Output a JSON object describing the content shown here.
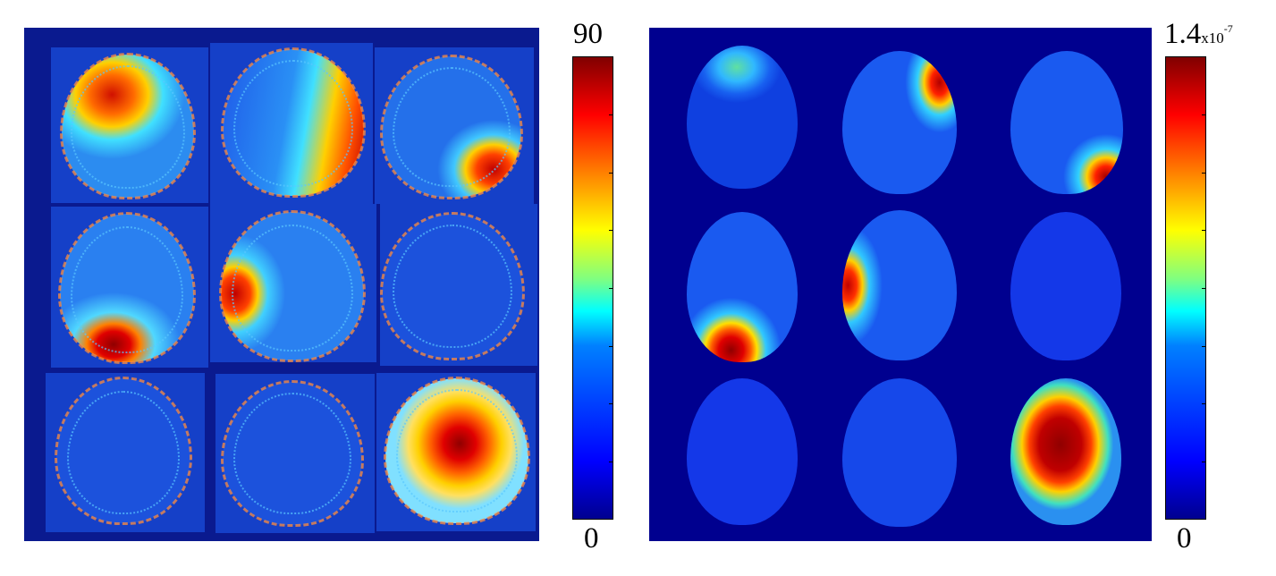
{
  "left_colorbar": {
    "max_label": "90",
    "min_label": "0",
    "min_value": 0,
    "max_value": 90
  },
  "right_colorbar": {
    "max_label": "1.4",
    "max_suffix": "x10",
    "max_exp": "-7",
    "min_label": "0"
  },
  "left_panel": {
    "grid": "3x3",
    "tiles": [
      {
        "hotspot": "top-left",
        "intensity": "high"
      },
      {
        "hotspot": "right",
        "intensity": "high"
      },
      {
        "hotspot": "bottom-right",
        "intensity": "high"
      },
      {
        "hotspot": "bottom-left",
        "intensity": "high"
      },
      {
        "hotspot": "left",
        "intensity": "high"
      },
      {
        "hotspot": "none",
        "intensity": "low"
      },
      {
        "hotspot": "none",
        "intensity": "low"
      },
      {
        "hotspot": "none",
        "intensity": "low"
      },
      {
        "hotspot": "center",
        "intensity": "very-high"
      }
    ]
  },
  "right_panel": {
    "grid": "3x3",
    "tiles": [
      {
        "hotspot": "top-left",
        "intensity": "low"
      },
      {
        "hotspot": "top-right",
        "intensity": "high"
      },
      {
        "hotspot": "bottom-right",
        "intensity": "high"
      },
      {
        "hotspot": "bottom-left",
        "intensity": "high"
      },
      {
        "hotspot": "left",
        "intensity": "high"
      },
      {
        "hotspot": "none",
        "intensity": "low"
      },
      {
        "hotspot": "none",
        "intensity": "low"
      },
      {
        "hotspot": "none",
        "intensity": "low"
      },
      {
        "hotspot": "center",
        "intensity": "very-high"
      }
    ]
  }
}
